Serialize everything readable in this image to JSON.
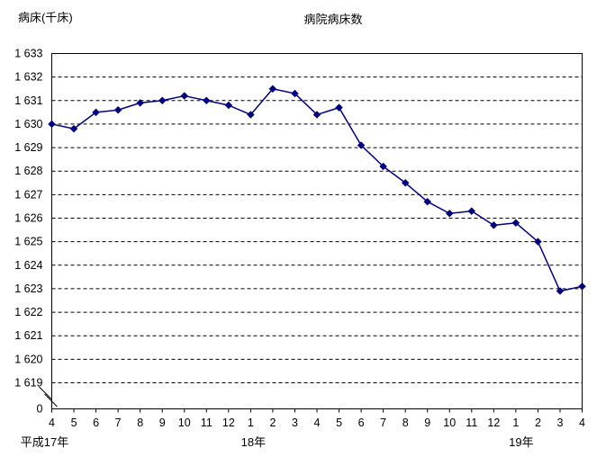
{
  "chart_data": {
    "type": "line",
    "title": "病院病床数",
    "y_unit_label": "病床(千床)",
    "x_tick_labels": [
      "4",
      "5",
      "6",
      "7",
      "8",
      "9",
      "10",
      "11",
      "12",
      "1",
      "2",
      "3",
      "4",
      "5",
      "6",
      "7",
      "8",
      "9",
      "10",
      "11",
      "12",
      "1",
      "2",
      "3",
      "4"
    ],
    "year_labels": [
      {
        "label": "平成17年",
        "month_index": 0
      },
      {
        "label": "18年",
        "month_index": 9
      },
      {
        "label": "19年",
        "month_index": 21
      }
    ],
    "series": [
      {
        "name": "病院病床数",
        "values": [
          1630.0,
          1629.8,
          1630.5,
          1630.6,
          1630.9,
          1631.0,
          1631.2,
          1631.0,
          1630.8,
          1630.4,
          1631.5,
          1631.3,
          1630.4,
          1630.7,
          1629.1,
          1628.2,
          1627.5,
          1626.7,
          1626.2,
          1626.3,
          1625.7,
          1625.8,
          1625.0,
          1622.9,
          1623.1
        ]
      }
    ],
    "y_ticks": [
      {
        "value": 1633,
        "label": "1 633"
      },
      {
        "value": 1632,
        "label": "1 632"
      },
      {
        "value": 1631,
        "label": "1 631"
      },
      {
        "value": 1630,
        "label": "1 630"
      },
      {
        "value": 1629,
        "label": "1 629"
      },
      {
        "value": 1628,
        "label": "1 628"
      },
      {
        "value": 1627,
        "label": "1 627"
      },
      {
        "value": 1626,
        "label": "1 626"
      },
      {
        "value": 1625,
        "label": "1 625"
      },
      {
        "value": 1624,
        "label": "1 624"
      },
      {
        "value": 1623,
        "label": "1 623"
      },
      {
        "value": 1622,
        "label": "1 622"
      },
      {
        "value": 1621,
        "label": "1 621"
      },
      {
        "value": 1620,
        "label": "1 620"
      },
      {
        "value": 1619,
        "label": "1 619"
      }
    ],
    "zero_tick_label": "0",
    "has_y_axis_break": true,
    "ylim": [
      1619,
      1633
    ],
    "line_color": "#000080",
    "marker": "diamond",
    "axis_color": "#000000",
    "grid": {
      "horizontal": "dashed",
      "color": "#000000"
    },
    "legend": "none",
    "background": "#ffffff"
  }
}
